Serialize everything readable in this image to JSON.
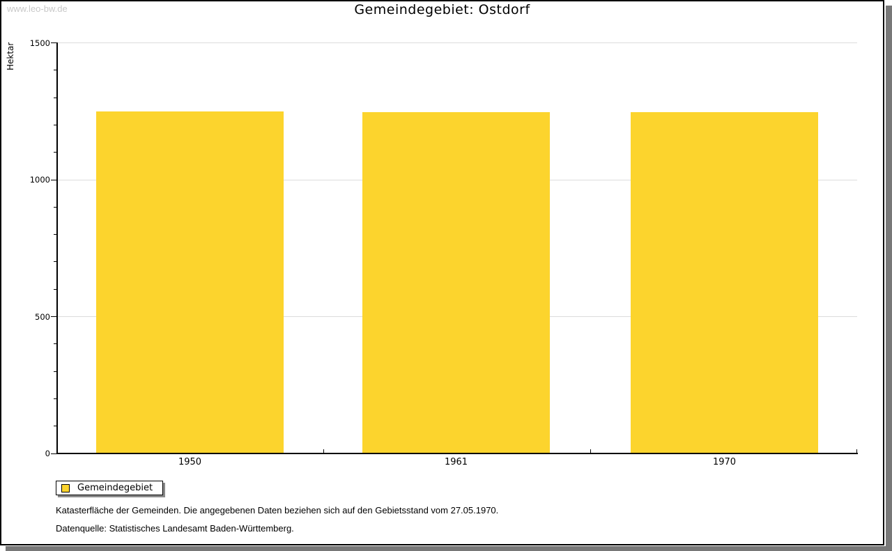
{
  "watermark": "www.leo-bw.de",
  "title": "Gemeindegebiet: Ostdorf",
  "chart_data": {
    "type": "bar",
    "title": "Gemeindegebiet: Ostdorf",
    "categories": [
      "1950",
      "1961",
      "1970"
    ],
    "series": [
      {
        "name": "Gemeindegebiet",
        "values": [
          1250,
          1247,
          1248
        ]
      }
    ],
    "xlabel": "",
    "ylabel": "Hektar",
    "ylim": [
      0,
      1500
    ],
    "yticks": [
      0,
      500,
      1000,
      1500
    ],
    "minor_tick_step": 100,
    "grid": "horizontal",
    "legend_position": "bottom-left",
    "bar_color": "#FCD42D",
    "grid_color": "#DCDCDC",
    "axis_color": "#000000"
  },
  "legend": {
    "label": "Gemeindegebiet",
    "swatch_color": "#FCD42D"
  },
  "footnotes": [
    "Katasterfläche der Gemeinden. Die angegebenen Daten beziehen sich auf den Gebietsstand vom 27.05.1970.",
    "Datenquelle: Statistisches Landesamt Baden-Württemberg."
  ]
}
